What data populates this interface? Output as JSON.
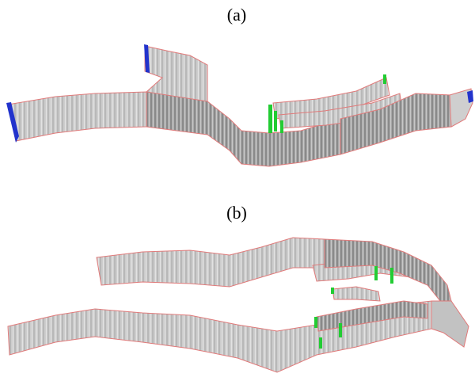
{
  "panels": [
    {
      "label": "(a)"
    },
    {
      "label": "(b)"
    }
  ],
  "colors": {
    "wall_light": "#d6d6d6",
    "wall_mid": "#b9b9b9",
    "wall_dark": "#8e8e8e",
    "edge": "#e07a7a",
    "blue_marker": "#2233cc",
    "green_marker": "#22cc33"
  }
}
